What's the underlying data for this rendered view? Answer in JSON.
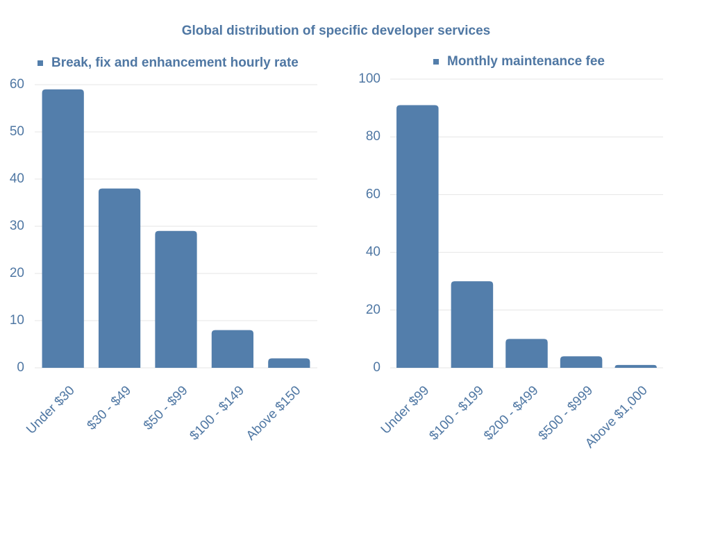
{
  "title": "Global distribution of specific developer services",
  "chart_data": [
    {
      "type": "bar",
      "categories": [
        "Under $30",
        "$30 - $49",
        "$50 - $99",
        "$100 - $149",
        "Above $150"
      ],
      "series": [
        {
          "name": "Break, fix and enhancement hourly rate",
          "color": "#537eab",
          "values": [
            59,
            38,
            29,
            8,
            2
          ]
        }
      ],
      "ylim": [
        0,
        60
      ],
      "yticks": [
        0,
        10,
        20,
        30,
        40,
        50,
        60
      ],
      "grid": true,
      "legend": "top"
    },
    {
      "type": "bar",
      "categories": [
        "Under $99",
        "$100 - $199",
        "$200 - $499",
        "$500 - $999",
        "Above $1,000"
      ],
      "series": [
        {
          "name": "Monthly maintenance fee",
          "color": "#537eab",
          "values": [
            91,
            30,
            10,
            4,
            1
          ]
        }
      ],
      "ylim": [
        0,
        100
      ],
      "yticks": [
        0,
        20,
        40,
        60,
        80,
        100
      ],
      "grid": true,
      "legend": "top"
    }
  ]
}
